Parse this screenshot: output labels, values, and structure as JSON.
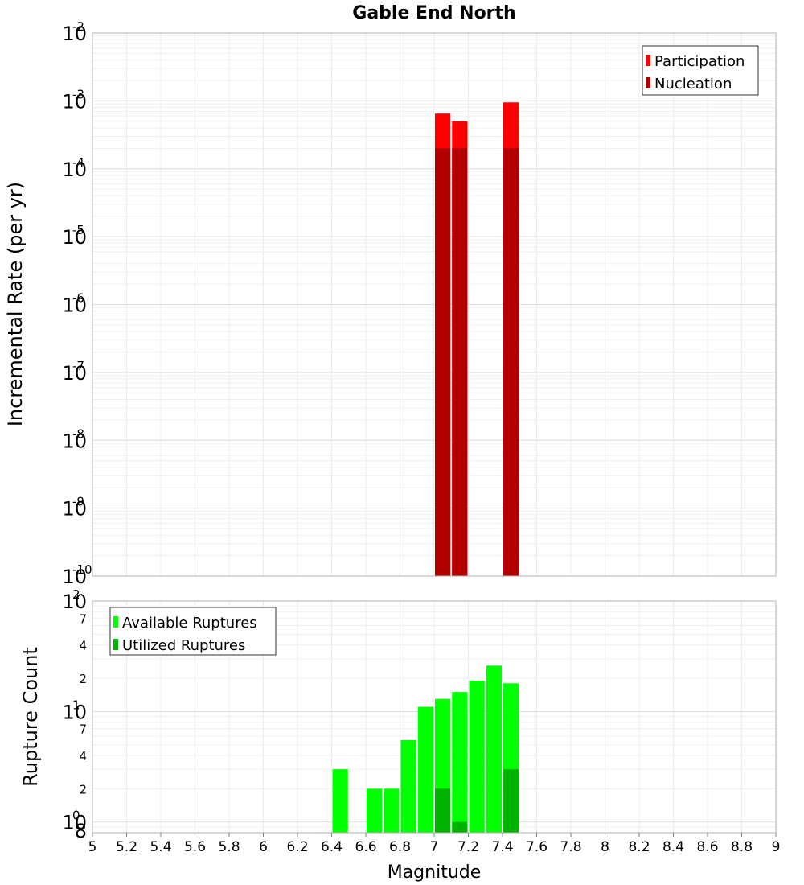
{
  "chart_data": [
    {
      "type": "bar",
      "title": "Gable End North",
      "xlabel": "",
      "ylabel": "Incremental Rate (per yr)",
      "xlim": [
        5,
        9
      ],
      "ylim": [
        1e-10,
        0.01
      ],
      "yscale": "log",
      "y_tick_labels": [
        {
          "value": 1e-10,
          "mant": "10",
          "exp": "-10"
        },
        {
          "value": 1e-09,
          "mant": "10",
          "exp": "-9"
        },
        {
          "value": 1e-08,
          "mant": "10",
          "exp": "-8"
        },
        {
          "value": 1e-07,
          "mant": "10",
          "exp": "-7"
        },
        {
          "value": 1e-06,
          "mant": "10",
          "exp": "-6"
        },
        {
          "value": 1e-05,
          "mant": "10",
          "exp": "-5"
        },
        {
          "value": 0.0001,
          "mant": "10",
          "exp": "-4"
        },
        {
          "value": 0.001,
          "mant": "10",
          "exp": "-3"
        },
        {
          "value": 0.01,
          "mant": "10",
          "exp": "-2"
        }
      ],
      "grid": true,
      "legend_position": "top-right",
      "series": [
        {
          "name": "Participation",
          "color": "#ff0000",
          "points": [
            {
              "x": 7.05,
              "y": 0.00065
            },
            {
              "x": 7.15,
              "y": 0.0005
            },
            {
              "x": 7.45,
              "y": 0.00095
            }
          ]
        },
        {
          "name": "Nucleation",
          "color": "#b20000",
          "points": [
            {
              "x": 7.05,
              "y": 0.0002
            },
            {
              "x": 7.15,
              "y": 0.0002
            },
            {
              "x": 7.45,
              "y": 0.0002
            }
          ]
        }
      ]
    },
    {
      "type": "bar",
      "title": "",
      "xlabel": "Magnitude",
      "ylabel": "Rupture Count",
      "xlim": [
        5,
        9
      ],
      "x_ticks": [
        "5",
        "5.2",
        "5.4",
        "5.6",
        "5.8",
        "6",
        "6.2",
        "6.4",
        "6.6",
        "6.8",
        "7",
        "7.2",
        "7.4",
        "7.6",
        "7.8",
        "8",
        "8.2",
        "8.4",
        "8.6",
        "8.8",
        "9"
      ],
      "ylim": [
        0.8,
        100
      ],
      "yscale": "log",
      "y_tick_labels": [
        {
          "value": 1,
          "mant": "10",
          "exp": "0"
        },
        {
          "value": 10,
          "mant": "10",
          "exp": "1"
        },
        {
          "value": 100,
          "mant": "10",
          "exp": "2"
        }
      ],
      "y_minor_labels": [
        {
          "value": 0.8,
          "label": "8"
        },
        {
          "value": 2,
          "label": "2"
        },
        {
          "value": 4,
          "label": "4"
        },
        {
          "value": 7,
          "label": "7"
        },
        {
          "value": 20,
          "label": "2"
        },
        {
          "value": 40,
          "label": "4"
        },
        {
          "value": 70,
          "label": "7"
        }
      ],
      "grid": true,
      "legend_position": "top-left",
      "series": [
        {
          "name": "Available Ruptures",
          "color": "#00ff00",
          "points": [
            {
              "x": 6.45,
              "y": 3
            },
            {
              "x": 6.65,
              "y": 2
            },
            {
              "x": 6.75,
              "y": 2
            },
            {
              "x": 6.85,
              "y": 5.5
            },
            {
              "x": 6.95,
              "y": 11
            },
            {
              "x": 7.05,
              "y": 13
            },
            {
              "x": 7.15,
              "y": 15
            },
            {
              "x": 7.25,
              "y": 19
            },
            {
              "x": 7.35,
              "y": 26
            },
            {
              "x": 7.45,
              "y": 18
            }
          ]
        },
        {
          "name": "Utilized Ruptures",
          "color": "#00b200",
          "points": [
            {
              "x": 7.05,
              "y": 2
            },
            {
              "x": 7.15,
              "y": 1
            },
            {
              "x": 7.45,
              "y": 3
            }
          ]
        }
      ]
    }
  ]
}
